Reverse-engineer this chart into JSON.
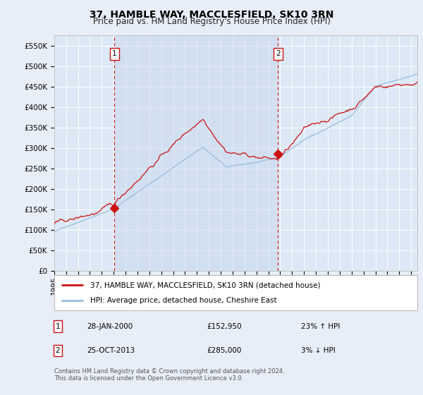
{
  "title": "37, HAMBLE WAY, MACCLESFIELD, SK10 3RN",
  "subtitle": "Price paid vs. HM Land Registry's House Price Index (HPI)",
  "ylabel_ticks": [
    "£0",
    "£50K",
    "£100K",
    "£150K",
    "£200K",
    "£250K",
    "£300K",
    "£350K",
    "£400K",
    "£450K",
    "£500K",
    "£550K"
  ],
  "ylim": [
    0,
    575000
  ],
  "xlim_start": 1995.0,
  "xlim_end": 2025.5,
  "background_color": "#e8eef8",
  "plot_bg_color": "#dce8f5",
  "line1_color": "#cc1111",
  "line2_color": "#99bbdd",
  "vline_color": "#cc1111",
  "vline_x1": 2000.07,
  "vline_x2": 2013.81,
  "sale1_x": 2000.07,
  "sale1_y": 152950,
  "sale2_x": 2013.81,
  "sale2_y": 285000,
  "legend_line1": "37, HAMBLE WAY, MACCLESFIELD, SK10 3RN (detached house)",
  "legend_line2": "HPI: Average price, detached house, Cheshire East",
  "annotation1_num": "1",
  "annotation1_date": "28-JAN-2000",
  "annotation1_price": "£152,950",
  "annotation1_hpi": "23% ↑ HPI",
  "annotation2_num": "2",
  "annotation2_date": "25-OCT-2013",
  "annotation2_price": "£285,000",
  "annotation2_hpi": "3% ↓ HPI",
  "footer": "Contains HM Land Registry data © Crown copyright and database right 2024.\nThis data is licensed under the Open Government Licence v3.0.",
  "title_fontsize": 10,
  "subtitle_fontsize": 8.5,
  "tick_fontsize": 7.5
}
